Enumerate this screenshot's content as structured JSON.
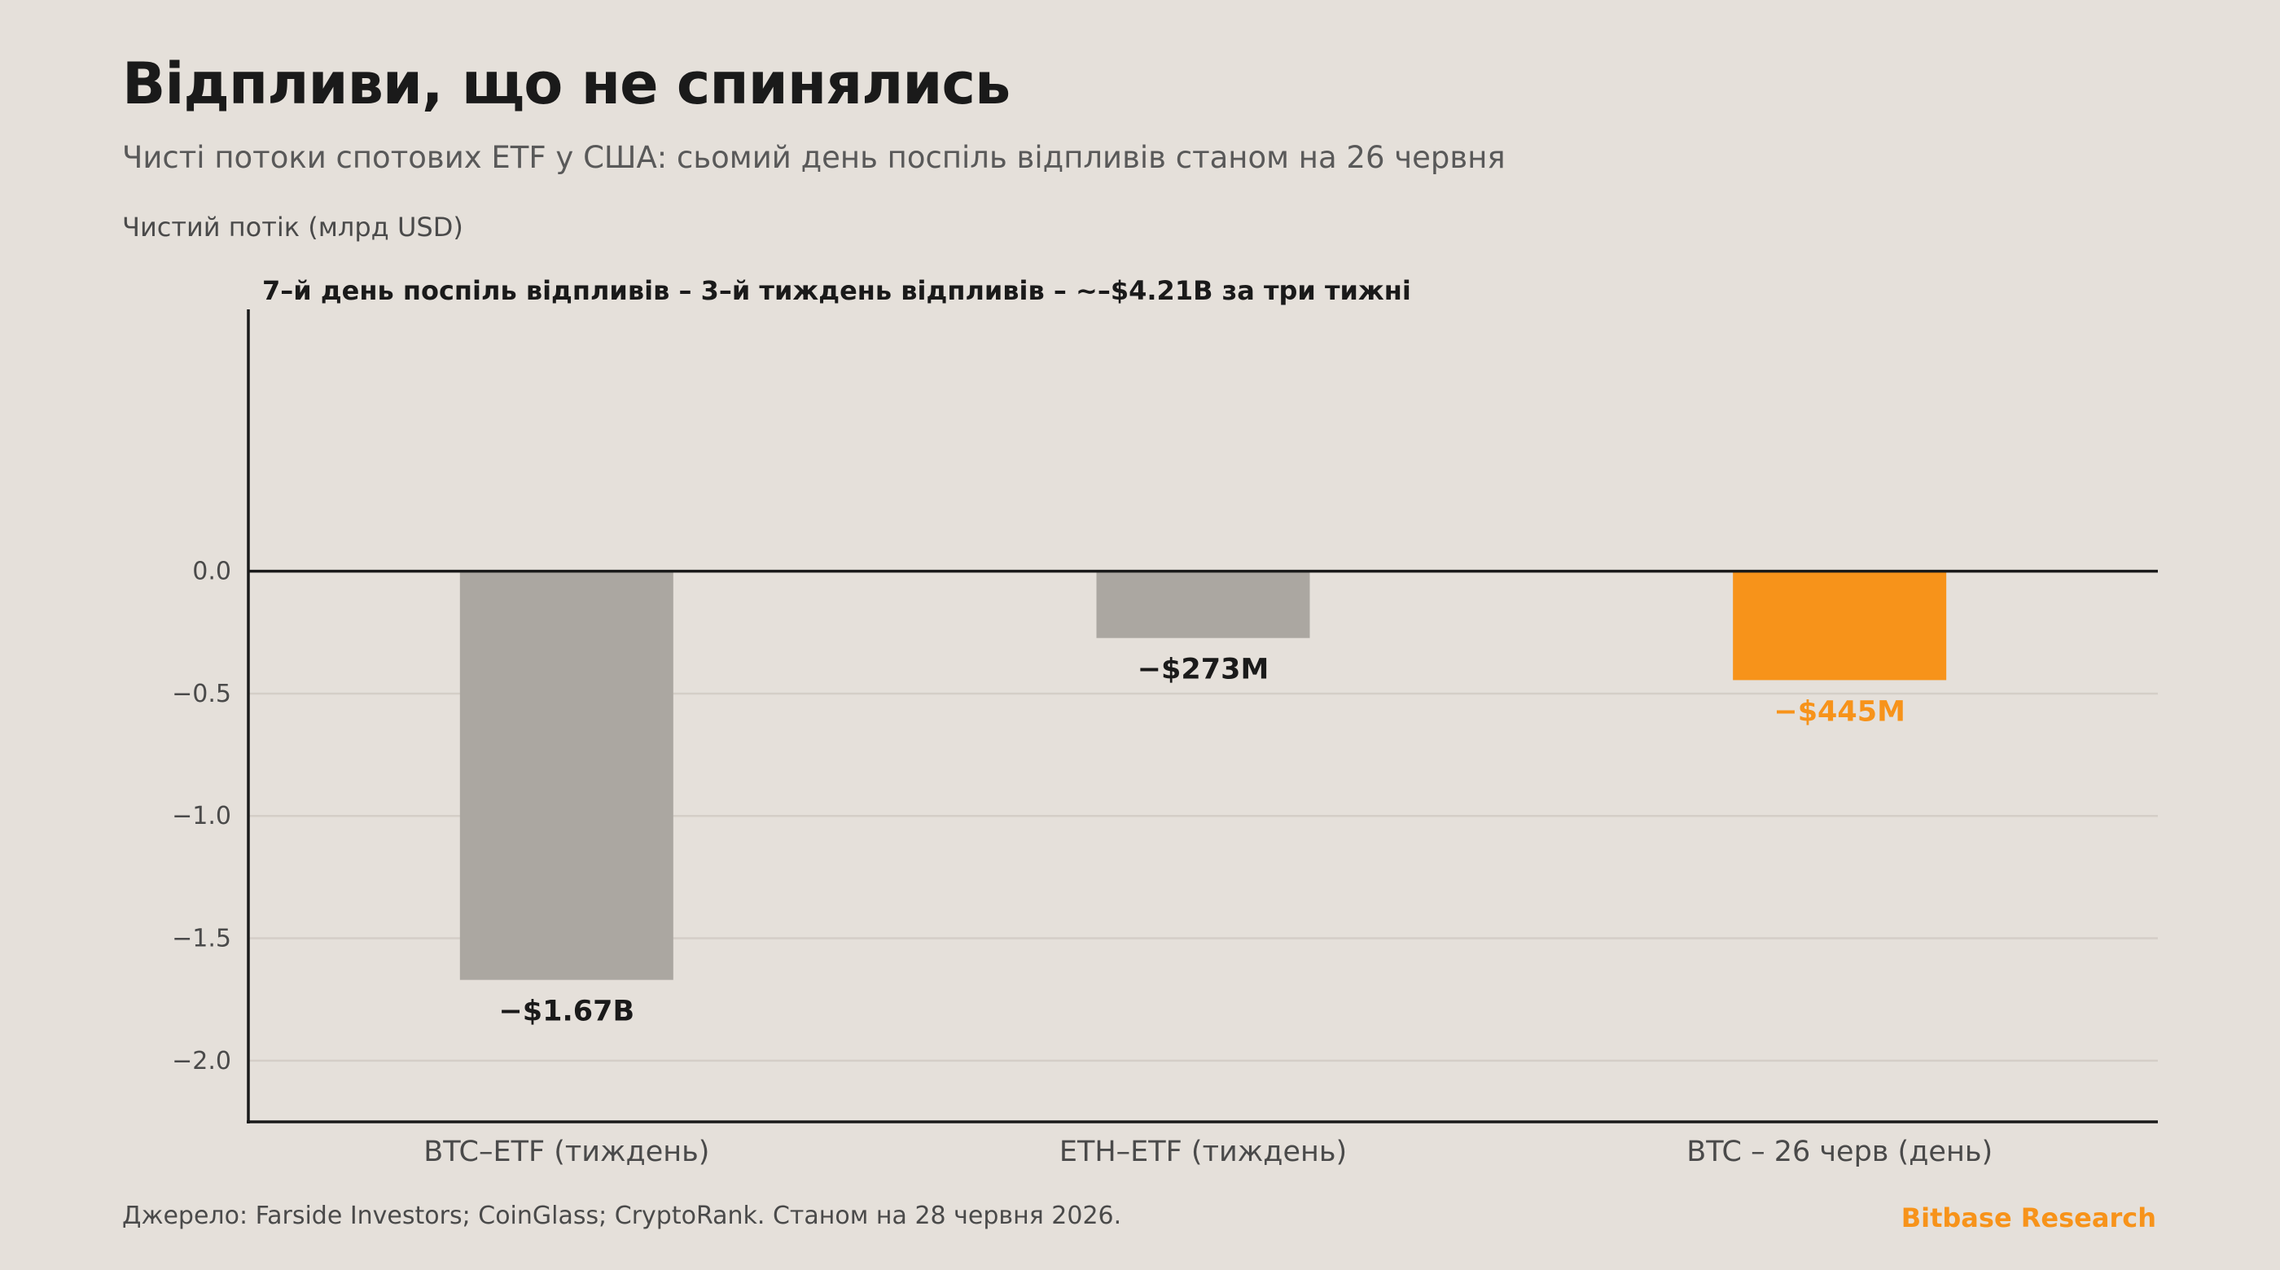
{
  "header": {
    "title": "Відпливи, що не спинялись",
    "subtitle": "Чисті потоки спотових ETF у США: сьомий день поспіль відпливів станом на 26 червня"
  },
  "footer": {
    "source": "Джерело: Farside Investors; CoinGlass; CryptoRank. Станом на 28 червня 2026.",
    "brand": "Bitbase Research"
  },
  "chart_data": {
    "type": "bar",
    "title": "Відпливи, що не спинялись",
    "subtitle": "Чисті потоки спотових ETF у США: сьомий день поспіль відпливів станом на 26 червня",
    "ylabel": "Чистий потік (млрд USD)",
    "xlabel": "",
    "ylim": [
      -2.25,
      1.07
    ],
    "yticks": [
      0.0,
      -0.5,
      -1.0,
      -1.5,
      -2.0
    ],
    "ytick_labels": [
      "0.0",
      "−0.5",
      "−1.0",
      "−1.5",
      "−2.0"
    ],
    "grid": true,
    "annotation": "7–й день поспіль відпливів – 3–й тиждень відпливів – ~–$4.21B за три тижні",
    "categories": [
      "BTC–ETF (тиждень)",
      "ETH–ETF (тиждень)",
      "BTC – 26 черв (день)"
    ],
    "values": [
      -1.67,
      -0.273,
      -0.445
    ],
    "value_labels": [
      "−$1.67B",
      "−$273M",
      "−$445M"
    ],
    "colors": [
      "#aba7a1",
      "#aba7a1",
      "#f7931a"
    ],
    "label_colors": [
      "#1a1a1a",
      "#1a1a1a",
      "#f7931a"
    ]
  }
}
